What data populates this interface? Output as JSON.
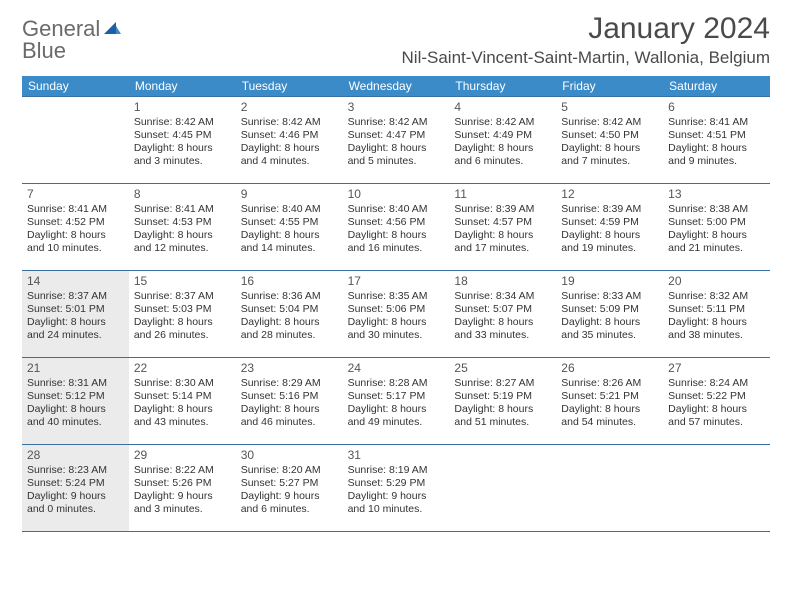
{
  "logo": {
    "word1": "General",
    "word2": "Blue"
  },
  "header": {
    "title": "January 2024",
    "location": "Nil-Saint-Vincent-Saint-Martin, Wallonia, Belgium"
  },
  "colors": {
    "header_bg": "#3b8bc9",
    "header_text": "#ffffff",
    "row_border": "#3b6fa0",
    "shaded_bg": "#ebebeb",
    "body_text": "#333333",
    "logo_gray": "#6a6a6a",
    "logo_blue": "#3b7fc4"
  },
  "weekdays": [
    "Sunday",
    "Monday",
    "Tuesday",
    "Wednesday",
    "Thursday",
    "Friday",
    "Saturday"
  ],
  "weeks": [
    [
      {
        "blank": true
      },
      {
        "day": "1",
        "sunrise": "Sunrise: 8:42 AM",
        "sunset": "Sunset: 4:45 PM",
        "daylight": "Daylight: 8 hours and 3 minutes."
      },
      {
        "day": "2",
        "sunrise": "Sunrise: 8:42 AM",
        "sunset": "Sunset: 4:46 PM",
        "daylight": "Daylight: 8 hours and 4 minutes."
      },
      {
        "day": "3",
        "sunrise": "Sunrise: 8:42 AM",
        "sunset": "Sunset: 4:47 PM",
        "daylight": "Daylight: 8 hours and 5 minutes."
      },
      {
        "day": "4",
        "sunrise": "Sunrise: 8:42 AM",
        "sunset": "Sunset: 4:49 PM",
        "daylight": "Daylight: 8 hours and 6 minutes."
      },
      {
        "day": "5",
        "sunrise": "Sunrise: 8:42 AM",
        "sunset": "Sunset: 4:50 PM",
        "daylight": "Daylight: 8 hours and 7 minutes."
      },
      {
        "day": "6",
        "sunrise": "Sunrise: 8:41 AM",
        "sunset": "Sunset: 4:51 PM",
        "daylight": "Daylight: 8 hours and 9 minutes."
      }
    ],
    [
      {
        "day": "7",
        "sunrise": "Sunrise: 8:41 AM",
        "sunset": "Sunset: 4:52 PM",
        "daylight": "Daylight: 8 hours and 10 minutes."
      },
      {
        "day": "8",
        "sunrise": "Sunrise: 8:41 AM",
        "sunset": "Sunset: 4:53 PM",
        "daylight": "Daylight: 8 hours and 12 minutes."
      },
      {
        "day": "9",
        "sunrise": "Sunrise: 8:40 AM",
        "sunset": "Sunset: 4:55 PM",
        "daylight": "Daylight: 8 hours and 14 minutes."
      },
      {
        "day": "10",
        "sunrise": "Sunrise: 8:40 AM",
        "sunset": "Sunset: 4:56 PM",
        "daylight": "Daylight: 8 hours and 16 minutes."
      },
      {
        "day": "11",
        "sunrise": "Sunrise: 8:39 AM",
        "sunset": "Sunset: 4:57 PM",
        "daylight": "Daylight: 8 hours and 17 minutes."
      },
      {
        "day": "12",
        "sunrise": "Sunrise: 8:39 AM",
        "sunset": "Sunset: 4:59 PM",
        "daylight": "Daylight: 8 hours and 19 minutes."
      },
      {
        "day": "13",
        "sunrise": "Sunrise: 8:38 AM",
        "sunset": "Sunset: 5:00 PM",
        "daylight": "Daylight: 8 hours and 21 minutes."
      }
    ],
    [
      {
        "day": "14",
        "shaded": true,
        "sunrise": "Sunrise: 8:37 AM",
        "sunset": "Sunset: 5:01 PM",
        "daylight": "Daylight: 8 hours and 24 minutes."
      },
      {
        "day": "15",
        "sunrise": "Sunrise: 8:37 AM",
        "sunset": "Sunset: 5:03 PM",
        "daylight": "Daylight: 8 hours and 26 minutes."
      },
      {
        "day": "16",
        "sunrise": "Sunrise: 8:36 AM",
        "sunset": "Sunset: 5:04 PM",
        "daylight": "Daylight: 8 hours and 28 minutes."
      },
      {
        "day": "17",
        "sunrise": "Sunrise: 8:35 AM",
        "sunset": "Sunset: 5:06 PM",
        "daylight": "Daylight: 8 hours and 30 minutes."
      },
      {
        "day": "18",
        "sunrise": "Sunrise: 8:34 AM",
        "sunset": "Sunset: 5:07 PM",
        "daylight": "Daylight: 8 hours and 33 minutes."
      },
      {
        "day": "19",
        "sunrise": "Sunrise: 8:33 AM",
        "sunset": "Sunset: 5:09 PM",
        "daylight": "Daylight: 8 hours and 35 minutes."
      },
      {
        "day": "20",
        "sunrise": "Sunrise: 8:32 AM",
        "sunset": "Sunset: 5:11 PM",
        "daylight": "Daylight: 8 hours and 38 minutes."
      }
    ],
    [
      {
        "day": "21",
        "shaded": true,
        "sunrise": "Sunrise: 8:31 AM",
        "sunset": "Sunset: 5:12 PM",
        "daylight": "Daylight: 8 hours and 40 minutes."
      },
      {
        "day": "22",
        "sunrise": "Sunrise: 8:30 AM",
        "sunset": "Sunset: 5:14 PM",
        "daylight": "Daylight: 8 hours and 43 minutes."
      },
      {
        "day": "23",
        "sunrise": "Sunrise: 8:29 AM",
        "sunset": "Sunset: 5:16 PM",
        "daylight": "Daylight: 8 hours and 46 minutes."
      },
      {
        "day": "24",
        "sunrise": "Sunrise: 8:28 AM",
        "sunset": "Sunset: 5:17 PM",
        "daylight": "Daylight: 8 hours and 49 minutes."
      },
      {
        "day": "25",
        "sunrise": "Sunrise: 8:27 AM",
        "sunset": "Sunset: 5:19 PM",
        "daylight": "Daylight: 8 hours and 51 minutes."
      },
      {
        "day": "26",
        "sunrise": "Sunrise: 8:26 AM",
        "sunset": "Sunset: 5:21 PM",
        "daylight": "Daylight: 8 hours and 54 minutes."
      },
      {
        "day": "27",
        "sunrise": "Sunrise: 8:24 AM",
        "sunset": "Sunset: 5:22 PM",
        "daylight": "Daylight: 8 hours and 57 minutes."
      }
    ],
    [
      {
        "day": "28",
        "shaded": true,
        "sunrise": "Sunrise: 8:23 AM",
        "sunset": "Sunset: 5:24 PM",
        "daylight": "Daylight: 9 hours and 0 minutes."
      },
      {
        "day": "29",
        "sunrise": "Sunrise: 8:22 AM",
        "sunset": "Sunset: 5:26 PM",
        "daylight": "Daylight: 9 hours and 3 minutes."
      },
      {
        "day": "30",
        "sunrise": "Sunrise: 8:20 AM",
        "sunset": "Sunset: 5:27 PM",
        "daylight": "Daylight: 9 hours and 6 minutes."
      },
      {
        "day": "31",
        "sunrise": "Sunrise: 8:19 AM",
        "sunset": "Sunset: 5:29 PM",
        "daylight": "Daylight: 9 hours and 10 minutes."
      },
      {
        "blank": true
      },
      {
        "blank": true
      },
      {
        "blank": true
      }
    ]
  ]
}
